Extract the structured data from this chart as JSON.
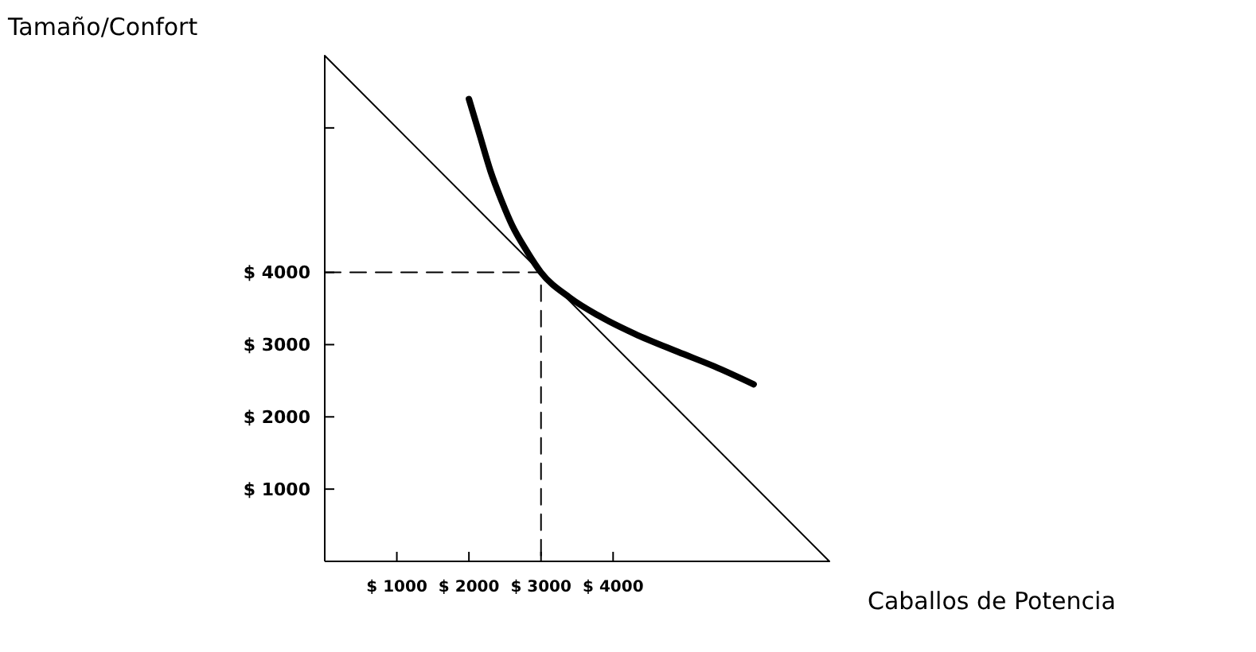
{
  "chart_data": {
    "type": "line",
    "xlabel": "Caballos de Potencia",
    "ylabel": "Tamaño/Confort",
    "xlim": [
      0,
      7000
    ],
    "ylim": [
      0,
      7000
    ],
    "xticks": [
      {
        "value": 1000,
        "label": "$ 1000"
      },
      {
        "value": 2000,
        "label": "$ 2000"
      },
      {
        "value": 3000,
        "label": "$ 3000"
      },
      {
        "value": 4000,
        "label": "$ 4000"
      }
    ],
    "yticks": [
      {
        "value": 1000,
        "label": "$ 1000"
      },
      {
        "value": 2000,
        "label": "$ 2000"
      },
      {
        "value": 3000,
        "label": "$ 3000"
      },
      {
        "value": 4000,
        "label": "$ 4000"
      },
      {
        "value": 6000,
        "label": null
      }
    ],
    "grid": false,
    "marker": "none",
    "series": [
      {
        "color": "#000000",
        "x": [
          0,
          7000
        ],
        "values": [
          7000,
          0
        ]
      },
      {
        "color": "#000000",
        "x": [
          2000,
          2150,
          2300,
          2450,
          2600,
          2800,
          3000,
          3400,
          3800,
          4300,
          4900,
          5400,
          5950
        ],
        "values": [
          6400,
          5900,
          5400,
          5000,
          4650,
          4300,
          4000,
          3650,
          3400,
          3150,
          2900,
          2700,
          2450
        ]
      },
      {
        "color": "#000000",
        "x": [
          0,
          3000,
          3000
        ],
        "values": [
          4000,
          4000,
          0
        ],
        "line_style": "dashed"
      }
    ]
  }
}
